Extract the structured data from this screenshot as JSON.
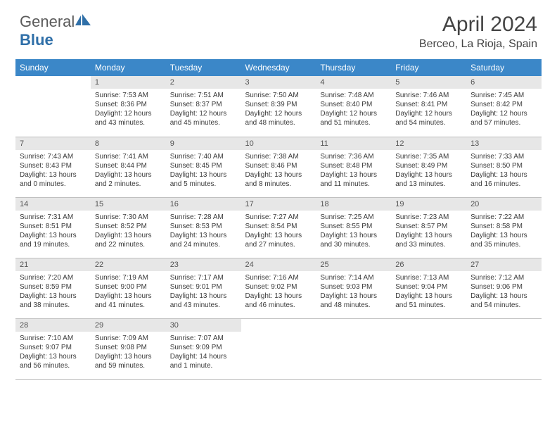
{
  "brand": {
    "text1": "General",
    "text2": "Blue"
  },
  "title": "April 2024",
  "location": "Berceo, La Rioja, Spain",
  "colors": {
    "header_bg": "#3b87c8",
    "header_text": "#ffffff",
    "daynum_bg": "#e7e7e7",
    "border": "#bfbfbf",
    "logo_gray": "#5a5a5a",
    "logo_blue": "#2f6fa8"
  },
  "weekdays": [
    "Sunday",
    "Monday",
    "Tuesday",
    "Wednesday",
    "Thursday",
    "Friday",
    "Saturday"
  ],
  "weeks": [
    [
      null,
      {
        "n": "1",
        "sr": "7:53 AM",
        "ss": "8:36 PM",
        "dl": "12 hours and 43 minutes."
      },
      {
        "n": "2",
        "sr": "7:51 AM",
        "ss": "8:37 PM",
        "dl": "12 hours and 45 minutes."
      },
      {
        "n": "3",
        "sr": "7:50 AM",
        "ss": "8:39 PM",
        "dl": "12 hours and 48 minutes."
      },
      {
        "n": "4",
        "sr": "7:48 AM",
        "ss": "8:40 PM",
        "dl": "12 hours and 51 minutes."
      },
      {
        "n": "5",
        "sr": "7:46 AM",
        "ss": "8:41 PM",
        "dl": "12 hours and 54 minutes."
      },
      {
        "n": "6",
        "sr": "7:45 AM",
        "ss": "8:42 PM",
        "dl": "12 hours and 57 minutes."
      }
    ],
    [
      {
        "n": "7",
        "sr": "7:43 AM",
        "ss": "8:43 PM",
        "dl": "13 hours and 0 minutes."
      },
      {
        "n": "8",
        "sr": "7:41 AM",
        "ss": "8:44 PM",
        "dl": "13 hours and 2 minutes."
      },
      {
        "n": "9",
        "sr": "7:40 AM",
        "ss": "8:45 PM",
        "dl": "13 hours and 5 minutes."
      },
      {
        "n": "10",
        "sr": "7:38 AM",
        "ss": "8:46 PM",
        "dl": "13 hours and 8 minutes."
      },
      {
        "n": "11",
        "sr": "7:36 AM",
        "ss": "8:48 PM",
        "dl": "13 hours and 11 minutes."
      },
      {
        "n": "12",
        "sr": "7:35 AM",
        "ss": "8:49 PM",
        "dl": "13 hours and 13 minutes."
      },
      {
        "n": "13",
        "sr": "7:33 AM",
        "ss": "8:50 PM",
        "dl": "13 hours and 16 minutes."
      }
    ],
    [
      {
        "n": "14",
        "sr": "7:31 AM",
        "ss": "8:51 PM",
        "dl": "13 hours and 19 minutes."
      },
      {
        "n": "15",
        "sr": "7:30 AM",
        "ss": "8:52 PM",
        "dl": "13 hours and 22 minutes."
      },
      {
        "n": "16",
        "sr": "7:28 AM",
        "ss": "8:53 PM",
        "dl": "13 hours and 24 minutes."
      },
      {
        "n": "17",
        "sr": "7:27 AM",
        "ss": "8:54 PM",
        "dl": "13 hours and 27 minutes."
      },
      {
        "n": "18",
        "sr": "7:25 AM",
        "ss": "8:55 PM",
        "dl": "13 hours and 30 minutes."
      },
      {
        "n": "19",
        "sr": "7:23 AM",
        "ss": "8:57 PM",
        "dl": "13 hours and 33 minutes."
      },
      {
        "n": "20",
        "sr": "7:22 AM",
        "ss": "8:58 PM",
        "dl": "13 hours and 35 minutes."
      }
    ],
    [
      {
        "n": "21",
        "sr": "7:20 AM",
        "ss": "8:59 PM",
        "dl": "13 hours and 38 minutes."
      },
      {
        "n": "22",
        "sr": "7:19 AM",
        "ss": "9:00 PM",
        "dl": "13 hours and 41 minutes."
      },
      {
        "n": "23",
        "sr": "7:17 AM",
        "ss": "9:01 PM",
        "dl": "13 hours and 43 minutes."
      },
      {
        "n": "24",
        "sr": "7:16 AM",
        "ss": "9:02 PM",
        "dl": "13 hours and 46 minutes."
      },
      {
        "n": "25",
        "sr": "7:14 AM",
        "ss": "9:03 PM",
        "dl": "13 hours and 48 minutes."
      },
      {
        "n": "26",
        "sr": "7:13 AM",
        "ss": "9:04 PM",
        "dl": "13 hours and 51 minutes."
      },
      {
        "n": "27",
        "sr": "7:12 AM",
        "ss": "9:06 PM",
        "dl": "13 hours and 54 minutes."
      }
    ],
    [
      {
        "n": "28",
        "sr": "7:10 AM",
        "ss": "9:07 PM",
        "dl": "13 hours and 56 minutes."
      },
      {
        "n": "29",
        "sr": "7:09 AM",
        "ss": "9:08 PM",
        "dl": "13 hours and 59 minutes."
      },
      {
        "n": "30",
        "sr": "7:07 AM",
        "ss": "9:09 PM",
        "dl": "14 hours and 1 minute."
      },
      null,
      null,
      null,
      null
    ]
  ],
  "labels": {
    "sunrise": "Sunrise:",
    "sunset": "Sunset:",
    "daylight": "Daylight:"
  }
}
